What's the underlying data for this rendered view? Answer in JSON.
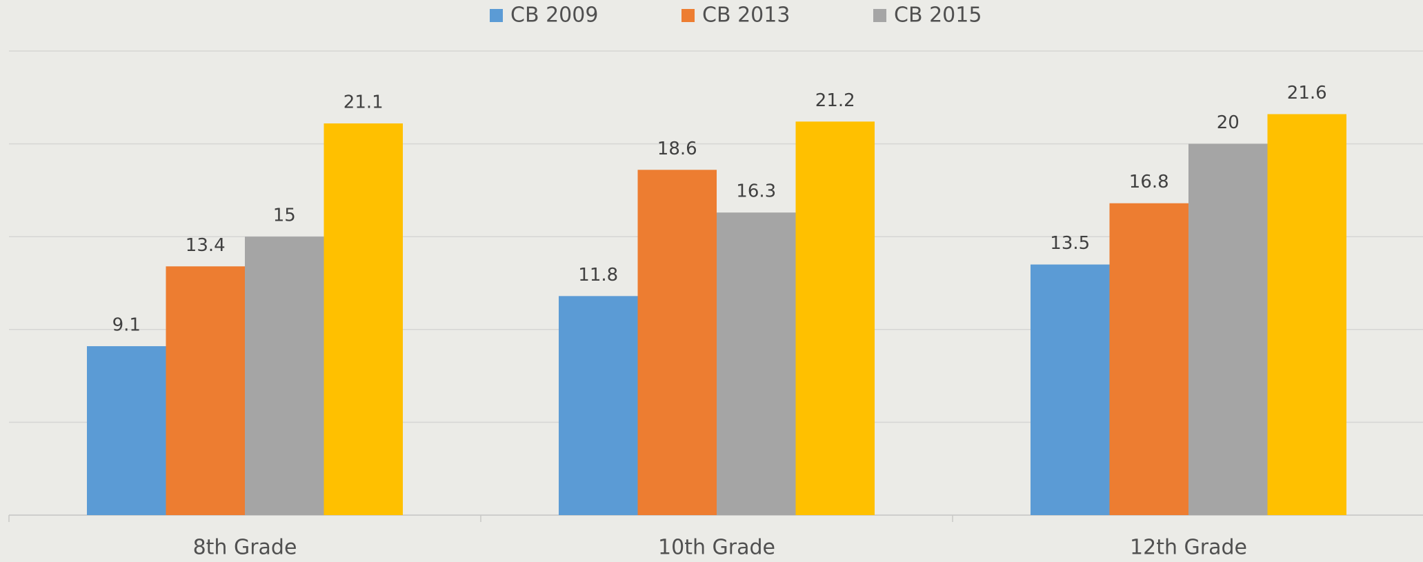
{
  "chart_data": {
    "type": "bar",
    "categories": [
      "8th Grade",
      "10th Grade",
      "12th Grade"
    ],
    "series": [
      {
        "name": "CB 2009",
        "color": "#5b9bd5",
        "values": [
          9.1,
          11.8,
          13.5
        ]
      },
      {
        "name": "CB 2013",
        "color": "#ed7d31",
        "values": [
          13.4,
          18.6,
          16.8
        ]
      },
      {
        "name": "CB 2015",
        "color": "#a5a5a5",
        "values": [
          15,
          16.3,
          20
        ]
      },
      {
        "color": "#ffc000",
        "values": [
          21.1,
          21.2,
          21.6
        ]
      }
    ],
    "ylim": [
      0,
      25
    ],
    "yticks": [
      0,
      5,
      10,
      15,
      20,
      25
    ],
    "grid": true,
    "legend": "top"
  }
}
